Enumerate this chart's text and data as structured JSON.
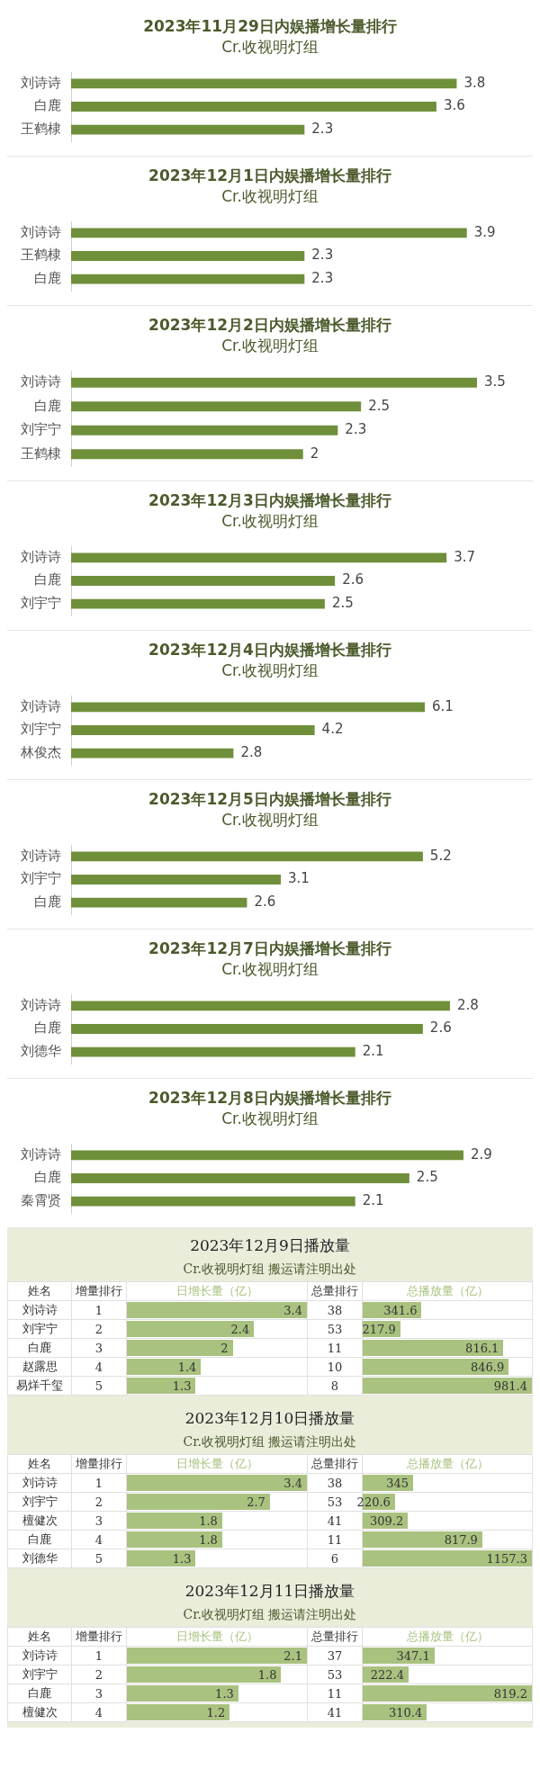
{
  "chart_data": [
    {
      "type": "bar",
      "orientation": "horizontal",
      "title": "2023年11月29日内娱播增长量排行",
      "subtitle": "Cr.收视明灯组",
      "categories": [
        "刘诗诗",
        "白鹿",
        "王鹤棣"
      ],
      "values": [
        3.8,
        3.6,
        2.3
      ],
      "color": "#6f8f3a",
      "data_labels": true
    },
    {
      "type": "bar",
      "orientation": "horizontal",
      "title": "2023年12月1日内娱播增长量排行",
      "subtitle": "Cr.收视明灯组",
      "categories": [
        "刘诗诗",
        "王鹤棣",
        "白鹿"
      ],
      "values": [
        3.9,
        2.3,
        2.3
      ],
      "color": "#6f8f3a",
      "data_labels": true
    },
    {
      "type": "bar",
      "orientation": "horizontal",
      "title": "2023年12月2日内娱播增长量排行",
      "subtitle": "Cr.收视明灯组",
      "categories": [
        "刘诗诗",
        "白鹿",
        "刘宇宁",
        "王鹤棣"
      ],
      "values": [
        3.5,
        2.5,
        2.3,
        2
      ],
      "color": "#6f8f3a",
      "data_labels": true
    },
    {
      "type": "bar",
      "orientation": "horizontal",
      "title": "2023年12月3日内娱播增长量排行",
      "subtitle": "Cr.收视明灯组",
      "categories": [
        "刘诗诗",
        "白鹿",
        "刘宇宁"
      ],
      "values": [
        3.7,
        2.6,
        2.5
      ],
      "color": "#6f8f3a",
      "data_labels": true
    },
    {
      "type": "bar",
      "orientation": "horizontal",
      "title": "2023年12月4日内娱播增长量排行",
      "subtitle": "Cr.收视明灯组",
      "categories": [
        "刘诗诗",
        "刘宇宁",
        "林俊杰"
      ],
      "values": [
        6.1,
        4.2,
        2.8
      ],
      "color": "#6f8f3a",
      "data_labels": true
    },
    {
      "type": "bar",
      "orientation": "horizontal",
      "title": "2023年12月5日内娱播增长量排行",
      "subtitle": "Cr.收视明灯组",
      "categories": [
        "刘诗诗",
        "刘宇宁",
        "白鹿"
      ],
      "values": [
        5.2,
        3.1,
        2.6
      ],
      "color": "#6f8f3a",
      "data_labels": true
    },
    {
      "type": "bar",
      "orientation": "horizontal",
      "title": "2023年12月7日内娱播增长量排行",
      "subtitle": "Cr.收视明灯组",
      "categories": [
        "刘诗诗",
        "白鹿",
        "刘德华"
      ],
      "values": [
        2.8,
        2.6,
        2.1
      ],
      "color": "#6f8f3a",
      "data_labels": true
    },
    {
      "type": "bar",
      "orientation": "horizontal",
      "title": "2023年12月8日内娱播增长量排行",
      "subtitle": "Cr.收视明灯组",
      "categories": [
        "刘诗诗",
        "白鹿",
        "秦霄贤"
      ],
      "values": [
        2.9,
        2.5,
        2.1
      ],
      "color": "#6f8f3a",
      "data_labels": true
    },
    {
      "type": "other",
      "title": "2023年12月9日播放量",
      "subtitle": "Cr.收视明灯组 搬运请注明出处",
      "ylabel": "姓名",
      "categories": [
        "刘诗诗",
        "刘宇宁",
        "白鹿",
        "赵露思",
        "易烊千玺"
      ],
      "data_labels": true,
      "series": [
        {
          "name": "增量排行",
          "type": "other",
          "color": "#ffffff",
          "values": [
            1,
            2,
            3,
            4,
            5
          ]
        },
        {
          "name": "日增长量（亿）",
          "type": "bar",
          "color": "#a9c27f",
          "values": [
            3.4,
            2.4,
            2,
            1.4,
            1.3
          ]
        },
        {
          "name": "总量排行",
          "type": "other",
          "color": "#ffffff",
          "values": [
            38,
            53,
            11,
            10,
            8
          ]
        },
        {
          "name": "总播放量（亿）",
          "type": "bar",
          "color": "#a9c27f",
          "values": [
            341.6,
            217.9,
            816.1,
            846.9,
            981.4
          ]
        }
      ]
    },
    {
      "type": "other",
      "title": "2023年12月10日播放量",
      "subtitle": "Cr.收视明灯组 搬运请注明出处",
      "ylabel": "姓名",
      "categories": [
        "刘诗诗",
        "刘宇宁",
        "檀健次",
        "白鹿",
        "刘德华"
      ],
      "data_labels": true,
      "series": [
        {
          "name": "增量排行",
          "type": "other",
          "color": "#ffffff",
          "values": [
            1,
            2,
            3,
            4,
            5
          ]
        },
        {
          "name": "日增长量（亿）",
          "type": "bar",
          "color": "#a9c27f",
          "values": [
            3.4,
            2.7,
            1.8,
            1.8,
            1.3
          ]
        },
        {
          "name": "总量排行",
          "type": "other",
          "color": "#ffffff",
          "values": [
            38,
            53,
            41,
            11,
            6
          ]
        },
        {
          "name": "总播放量（亿）",
          "type": "bar",
          "color": "#a9c27f",
          "values": [
            345,
            220.6,
            309.2,
            817.9,
            1157.3
          ]
        }
      ]
    },
    {
      "type": "other",
      "title": "2023年12月11日播放量",
      "subtitle": "Cr.收视明灯组 搬运请注明出处",
      "ylabel": "姓名",
      "categories": [
        "刘诗诗",
        "刘宇宁",
        "白鹿",
        "檀健次"
      ],
      "data_labels": true,
      "series": [
        {
          "name": "增量排行",
          "type": "other",
          "color": "#ffffff",
          "values": [
            1,
            2,
            3,
            4
          ]
        },
        {
          "name": "日增长量（亿）",
          "type": "bar",
          "color": "#a9c27f",
          "values": [
            2.1,
            1.8,
            1.3,
            1.2
          ]
        },
        {
          "name": "总量排行",
          "type": "other",
          "color": "#ffffff",
          "values": [
            37,
            53,
            11,
            41
          ]
        },
        {
          "name": "总播放量（亿）",
          "type": "bar",
          "color": "#a9c27f",
          "values": [
            347.1,
            222.4,
            819.2,
            310.4
          ]
        }
      ]
    }
  ]
}
